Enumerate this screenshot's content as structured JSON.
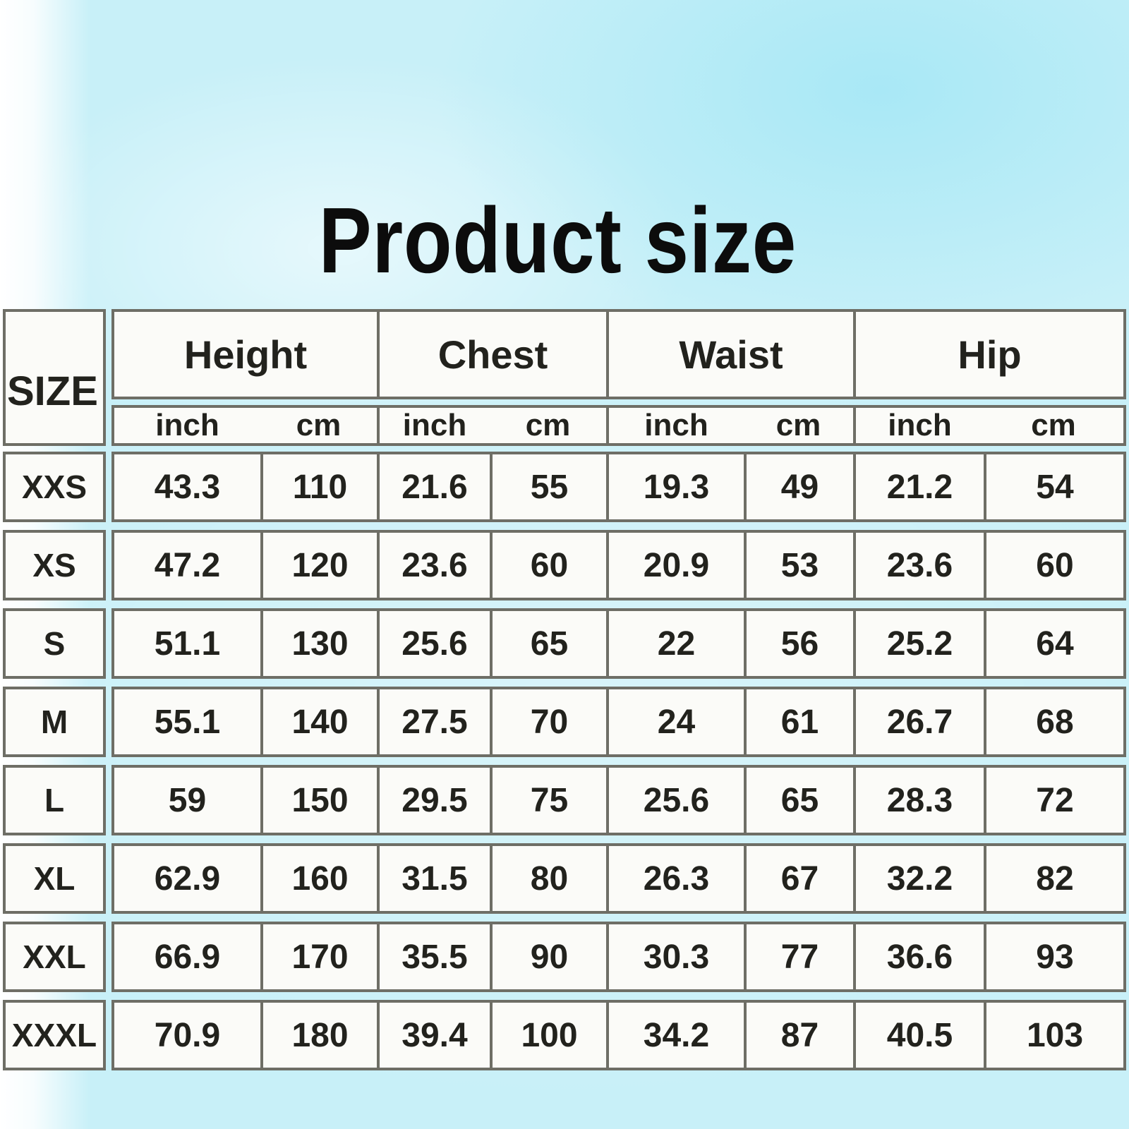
{
  "title": "Product size",
  "colors": {
    "background_cyan": "#c8f0f8",
    "border_gray": "#6e6e66",
    "cell_white": "#fbfbf8",
    "text_black": "#0c0c0c"
  },
  "chart_data": {
    "type": "table",
    "title": "Product size",
    "size_column_header": "SIZE",
    "measure_headers": [
      "Height",
      "Chest",
      "Waist",
      "Hip"
    ],
    "unit_headers": [
      "inch",
      "cm",
      "inch",
      "cm",
      "inch",
      "cm",
      "inch",
      "cm"
    ],
    "rows": [
      {
        "size": "XXS",
        "values": [
          "43.3",
          "110",
          "21.6",
          "55",
          "19.3",
          "49",
          "21.2",
          "54"
        ]
      },
      {
        "size": "XS",
        "values": [
          "47.2",
          "120",
          "23.6",
          "60",
          "20.9",
          "53",
          "23.6",
          "60"
        ]
      },
      {
        "size": "S",
        "values": [
          "51.1",
          "130",
          "25.6",
          "65",
          "22",
          "56",
          "25.2",
          "64"
        ]
      },
      {
        "size": "M",
        "values": [
          "55.1",
          "140",
          "27.5",
          "70",
          "24",
          "61",
          "26.7",
          "68"
        ]
      },
      {
        "size": "L",
        "values": [
          "59",
          "150",
          "29.5",
          "75",
          "25.6",
          "65",
          "28.3",
          "72"
        ]
      },
      {
        "size": "XL",
        "values": [
          "62.9",
          "160",
          "31.5",
          "80",
          "26.3",
          "67",
          "32.2",
          "82"
        ]
      },
      {
        "size": "XXL",
        "values": [
          "66.9",
          "170",
          "35.5",
          "90",
          "30.3",
          "77",
          "36.6",
          "93"
        ]
      },
      {
        "size": "XXXL",
        "values": [
          "70.9",
          "180",
          "39.4",
          "100",
          "34.2",
          "87",
          "40.5",
          "103"
        ]
      }
    ]
  }
}
